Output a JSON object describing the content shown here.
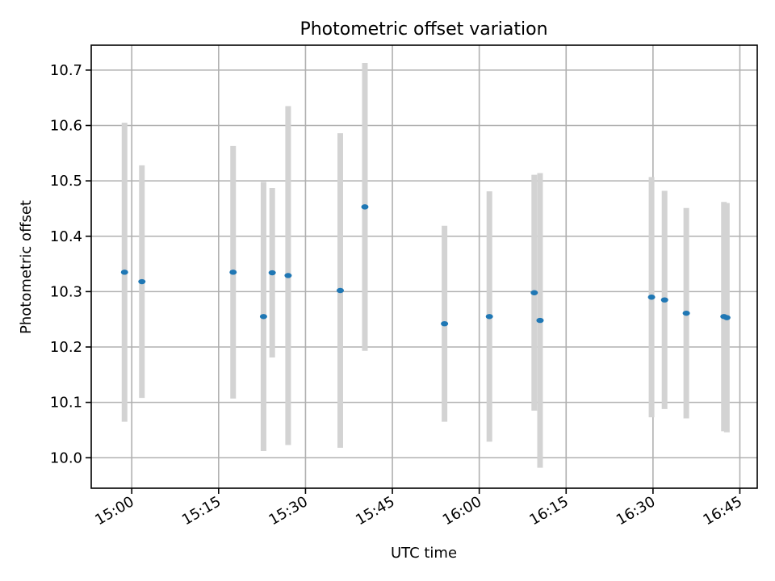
{
  "chart_data": {
    "type": "scatter",
    "title": "Photometric offset variation",
    "xlabel": "UTC time",
    "ylabel": "Photometric offset",
    "grid": true,
    "xlim": [
      "14:53",
      "16:48"
    ],
    "ylim": [
      9.945,
      10.745
    ],
    "x_ticks": [
      "15:00",
      "15:15",
      "15:30",
      "15:45",
      "16:00",
      "16:15",
      "16:30",
      "16:45"
    ],
    "y_ticks": [
      10.0,
      10.1,
      10.2,
      10.3,
      10.4,
      10.5,
      10.6,
      10.7
    ],
    "marker_color": "#1f77b4",
    "errorbar_color": "#d3d3d3",
    "points": [
      {
        "x": "14:58:45",
        "y": 10.335,
        "yerr": 0.27
      },
      {
        "x": "15:01:45",
        "y": 10.318,
        "yerr": 0.21
      },
      {
        "x": "15:17:30",
        "y": 10.335,
        "yerr": 0.228
      },
      {
        "x": "15:22:45",
        "y": 10.255,
        "yerr": 0.243
      },
      {
        "x": "15:24:15",
        "y": 10.334,
        "yerr": 0.153
      },
      {
        "x": "15:27:00",
        "y": 10.329,
        "yerr": 0.306
      },
      {
        "x": "15:36:00",
        "y": 10.302,
        "yerr": 0.284
      },
      {
        "x": "15:40:15",
        "y": 10.453,
        "yerr": 0.26
      },
      {
        "x": "15:54:00",
        "y": 10.242,
        "yerr": 0.177
      },
      {
        "x": "16:01:45",
        "y": 10.255,
        "yerr": 0.226
      },
      {
        "x": "16:09:30",
        "y": 10.298,
        "yerr": 0.213
      },
      {
        "x": "16:10:30",
        "y": 10.248,
        "yerr": 0.266
      },
      {
        "x": "16:29:45",
        "y": 10.29,
        "yerr": 0.217
      },
      {
        "x": "16:32:00",
        "y": 10.285,
        "yerr": 0.197
      },
      {
        "x": "16:35:45",
        "y": 10.261,
        "yerr": 0.19
      },
      {
        "x": "16:42:15",
        "y": 10.255,
        "yerr": 0.207
      },
      {
        "x": "16:42:45",
        "y": 10.253,
        "yerr": 0.207
      }
    ]
  }
}
